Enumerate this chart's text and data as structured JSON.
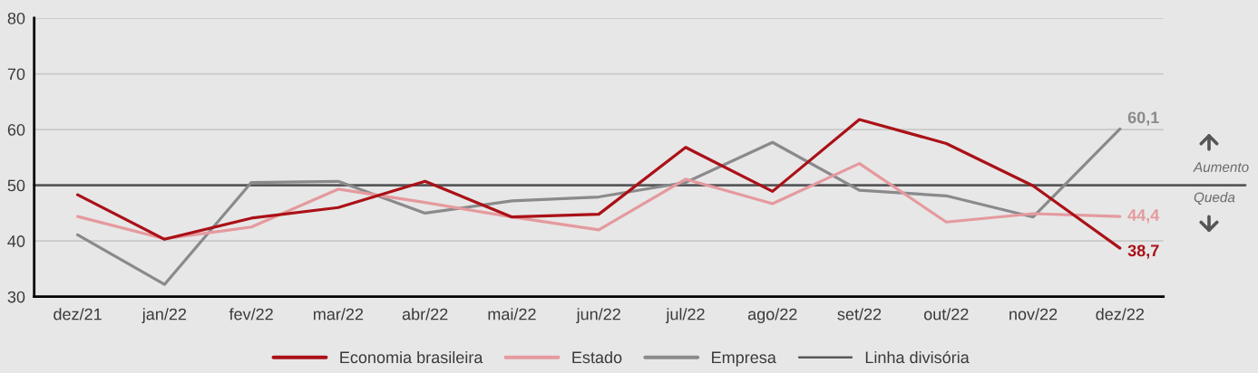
{
  "chart_data": {
    "type": "line",
    "categories": [
      "dez/21",
      "jan/22",
      "fev/22",
      "mar/22",
      "abr/22",
      "mai/22",
      "jun/22",
      "jul/22",
      "ago/22",
      "set/22",
      "out/22",
      "nov/22",
      "dez/22"
    ],
    "ylim": [
      30,
      80
    ],
    "yticks": [
      30,
      40,
      50,
      60,
      70,
      80
    ],
    "grid": "y",
    "legend": "bottom",
    "series": [
      {
        "name": "Economia brasileira",
        "color": "#aa1117",
        "values": [
          48.3,
          40.3,
          44.1,
          46.0,
          50.7,
          44.3,
          44.8,
          56.8,
          48.9,
          61.8,
          57.5,
          49.9,
          38.7
        ],
        "value_labels": [
          null,
          null,
          null,
          null,
          null,
          null,
          null,
          null,
          null,
          null,
          null,
          null,
          "38,7"
        ]
      },
      {
        "name": "Estado",
        "color": "#e59a9e",
        "values": [
          44.4,
          40.4,
          42.5,
          49.3,
          46.9,
          44.3,
          42.0,
          51.1,
          46.7,
          53.9,
          43.4,
          44.9,
          44.4
        ],
        "value_labels": [
          null,
          null,
          null,
          null,
          null,
          null,
          null,
          null,
          null,
          null,
          null,
          null,
          "44,4"
        ]
      },
      {
        "name": "Empresa",
        "color": "#8a8a8c",
        "values": [
          41.1,
          32.2,
          50.5,
          50.7,
          45.0,
          47.2,
          47.9,
          50.5,
          57.7,
          49.1,
          48.1,
          44.3,
          60.1
        ],
        "value_labels": [
          null,
          null,
          null,
          null,
          null,
          null,
          null,
          null,
          null,
          null,
          null,
          null,
          "60,1"
        ]
      }
    ],
    "ref_lines": [
      {
        "axis": "y",
        "value": 50,
        "label": "Linha divisória",
        "color": "#58585a"
      }
    ],
    "annotations": [
      "Aumento",
      "Queda"
    ]
  }
}
